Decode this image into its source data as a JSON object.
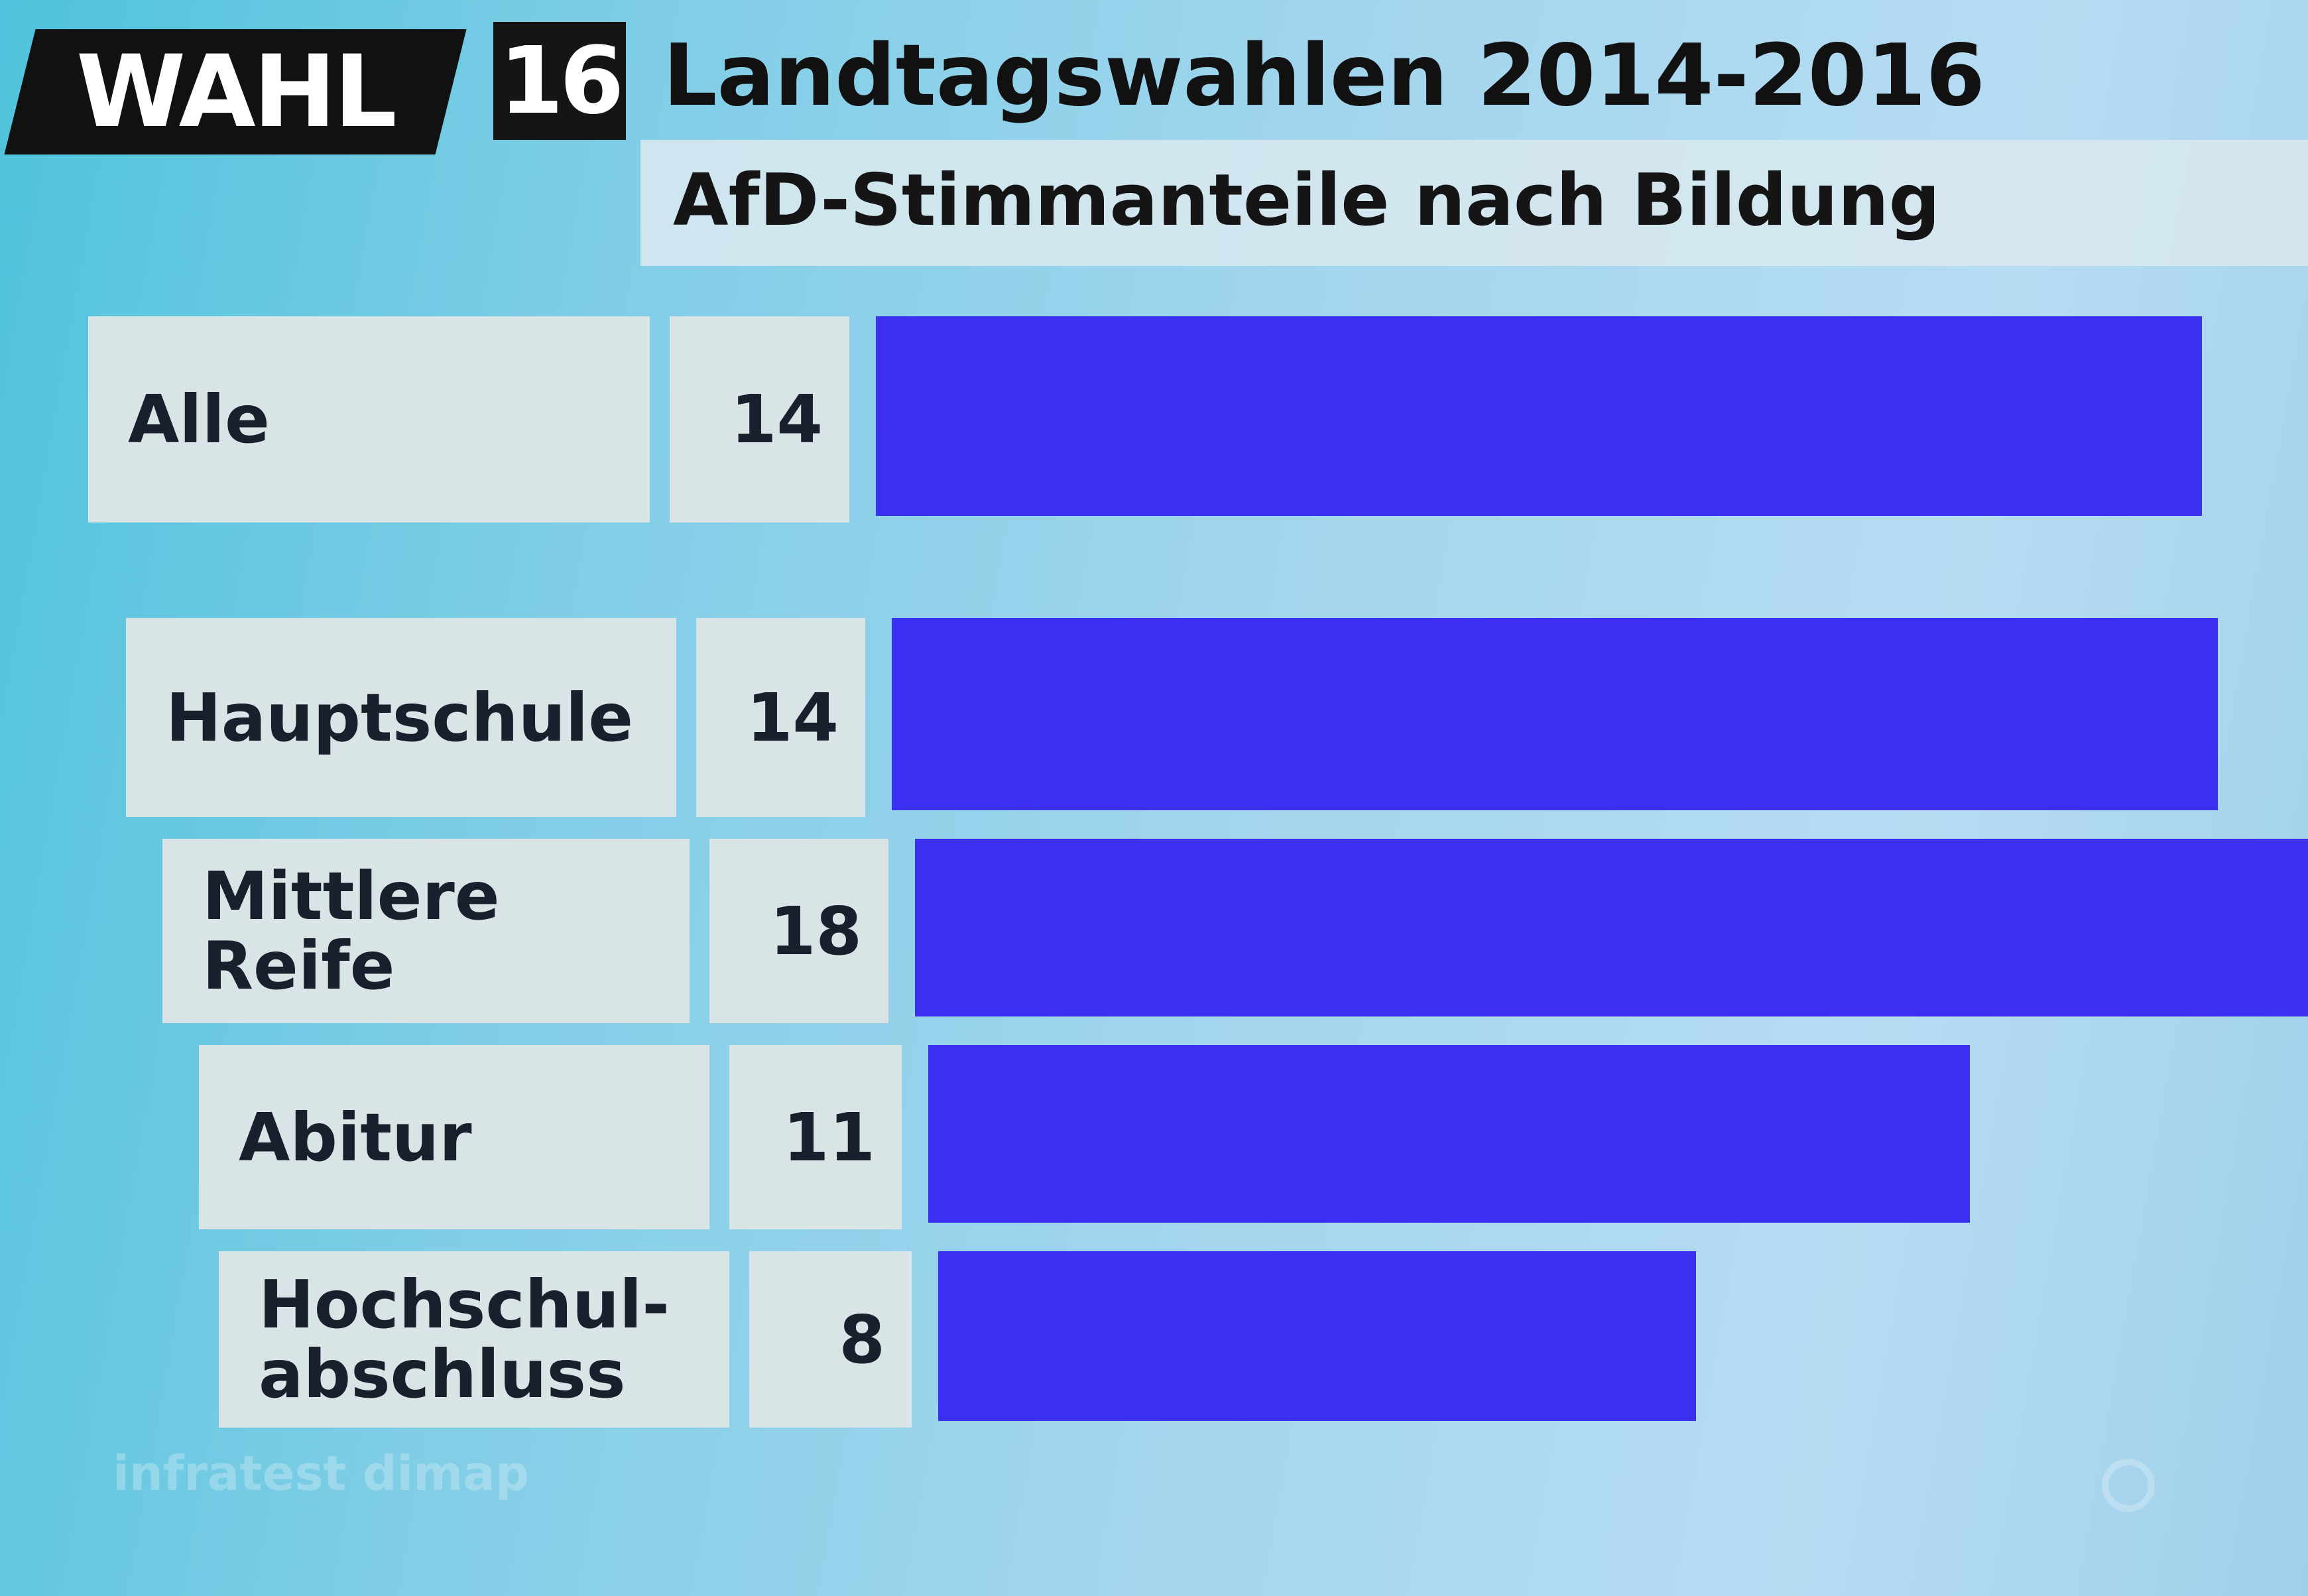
{
  "header": {
    "logo_text": "WAHL",
    "logo_number": "16",
    "title": "Landtagswahlen 2014-2016"
  },
  "chart_data": {
    "type": "bar",
    "orientation": "horizontal",
    "title": "Landtagswahlen 2014-2016",
    "subtitle": "AfD-Stimmanteile nach Bildung",
    "categories": [
      "Alle",
      "Hauptschule",
      "Mittlere Reife",
      "Abitur",
      "Hochschulabschluss"
    ],
    "category_labels": [
      "Alle",
      "Hauptschule",
      "Mittlere\nReife",
      "Abitur",
      "Hochschul-\nabschluss"
    ],
    "values": [
      14,
      14,
      18,
      11,
      8
    ],
    "value_labels": [
      "14",
      "14",
      "18",
      "11",
      "8"
    ],
    "unit": "%",
    "bar_color": "#3b2ff2",
    "source": "infratest dimap"
  }
}
